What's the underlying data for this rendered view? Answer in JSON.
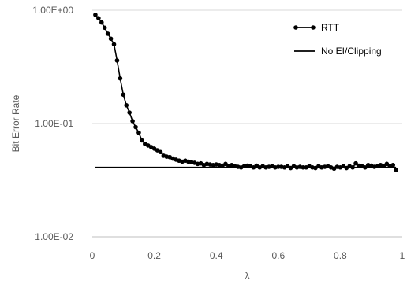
{
  "chart_data": {
    "type": "line",
    "xlabel": "λ",
    "ylabel": "Bit Error Rate",
    "xlim": [
      0,
      1
    ],
    "ylim": [
      0.01,
      1
    ],
    "y_scale": "log",
    "x_ticks": [
      "0",
      "0.2",
      "0.4",
      "0.6",
      "0.8",
      "1"
    ],
    "y_ticks": [
      "1.00E-02",
      "1.00E-01",
      "1.00E+00"
    ],
    "grid": "horizontal",
    "legend_position": "top-right",
    "series": [
      {
        "name": "RTT",
        "color": "#000000",
        "marker": "circle",
        "x": [
          0.01,
          0.02,
          0.03,
          0.04,
          0.05,
          0.06,
          0.07,
          0.08,
          0.09,
          0.1,
          0.11,
          0.12,
          0.13,
          0.14,
          0.15,
          0.16,
          0.17,
          0.18,
          0.19,
          0.2,
          0.21,
          0.22,
          0.23,
          0.24,
          0.25,
          0.26,
          0.27,
          0.28,
          0.29,
          0.3,
          0.31,
          0.32,
          0.33,
          0.34,
          0.35,
          0.36,
          0.37,
          0.38,
          0.39,
          0.4,
          0.41,
          0.42,
          0.43,
          0.44,
          0.45,
          0.46,
          0.47,
          0.48,
          0.49,
          0.5,
          0.51,
          0.52,
          0.53,
          0.54,
          0.55,
          0.56,
          0.57,
          0.58,
          0.59,
          0.6,
          0.61,
          0.62,
          0.63,
          0.64,
          0.65,
          0.66,
          0.67,
          0.68,
          0.69,
          0.7,
          0.71,
          0.72,
          0.73,
          0.74,
          0.75,
          0.76,
          0.77,
          0.78,
          0.79,
          0.8,
          0.81,
          0.82,
          0.83,
          0.84,
          0.85,
          0.86,
          0.87,
          0.88,
          0.89,
          0.9,
          0.91,
          0.92,
          0.93,
          0.94,
          0.95,
          0.96,
          0.97,
          0.98
        ],
        "y": [
          0.91,
          0.85,
          0.78,
          0.7,
          0.62,
          0.56,
          0.5,
          0.36,
          0.25,
          0.18,
          0.145,
          0.125,
          0.105,
          0.093,
          0.083,
          0.071,
          0.066,
          0.064,
          0.062,
          0.06,
          0.058,
          0.056,
          0.052,
          0.051,
          0.0505,
          0.049,
          0.048,
          0.047,
          0.046,
          0.047,
          0.046,
          0.0455,
          0.045,
          0.044,
          0.0445,
          0.043,
          0.044,
          0.0435,
          0.043,
          0.0435,
          0.043,
          0.0425,
          0.044,
          0.042,
          0.043,
          0.042,
          0.0415,
          0.041,
          0.042,
          0.0425,
          0.042,
          0.041,
          0.0425,
          0.041,
          0.042,
          0.041,
          0.0415,
          0.042,
          0.041,
          0.0415,
          0.0415,
          0.041,
          0.042,
          0.0405,
          0.042,
          0.041,
          0.0415,
          0.041,
          0.041,
          0.042,
          0.041,
          0.0405,
          0.042,
          0.041,
          0.0415,
          0.042,
          0.041,
          0.04,
          0.0415,
          0.041,
          0.042,
          0.0405,
          0.042,
          0.041,
          0.0445,
          0.0425,
          0.042,
          0.041,
          0.043,
          0.0425,
          0.0415,
          0.042,
          0.043,
          0.042,
          0.044,
          0.042,
          0.043,
          0.039
        ]
      },
      {
        "name": "No EI/Clipping",
        "color": "#000000",
        "marker": "none",
        "x": [
          0.01,
          0.98
        ],
        "y": [
          0.041,
          0.041
        ]
      }
    ]
  }
}
